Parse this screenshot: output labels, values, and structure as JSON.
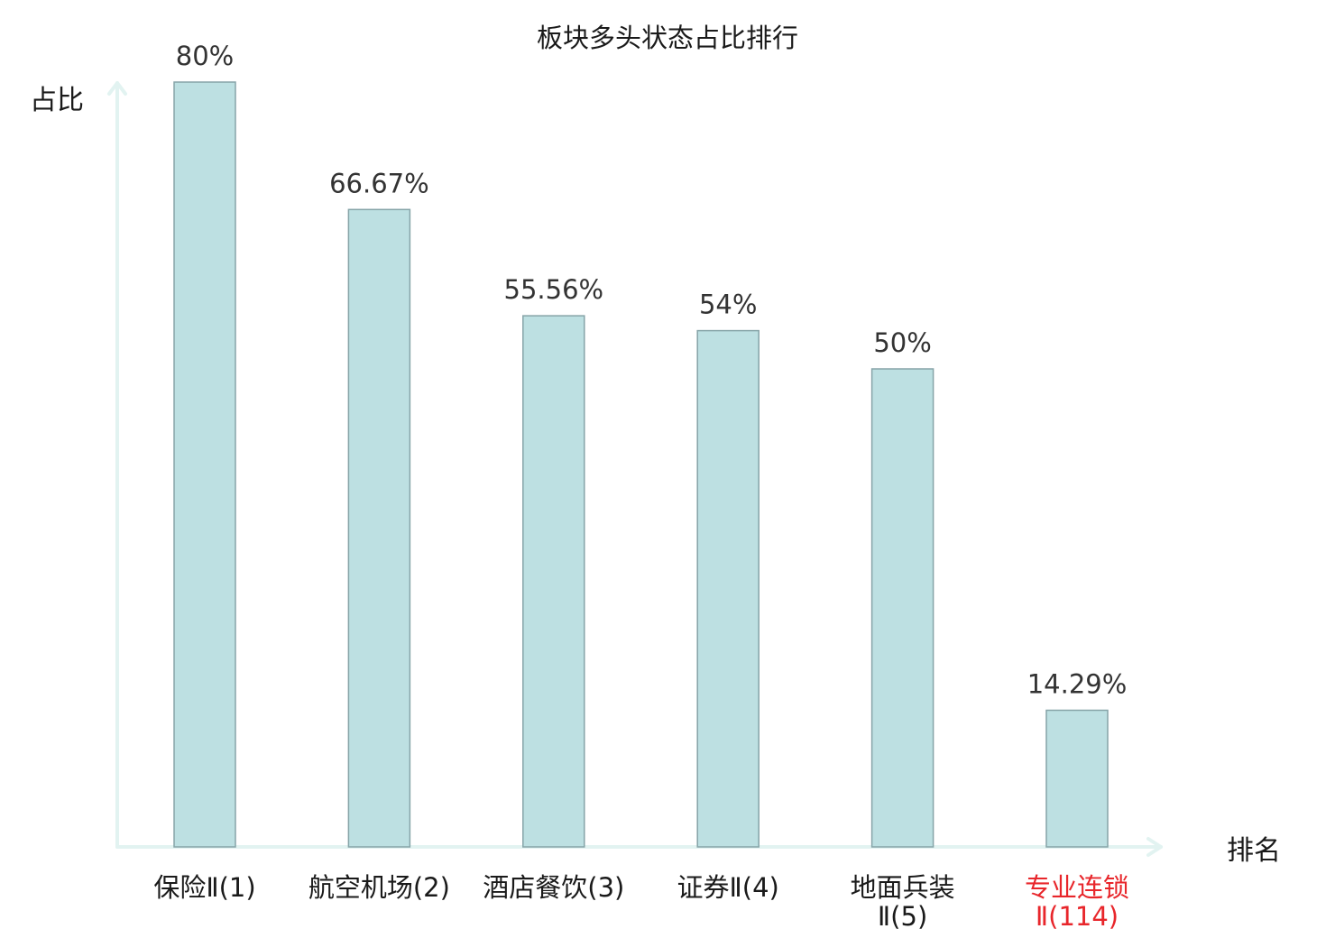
{
  "chart_data": {
    "type": "bar",
    "title": "板块多头状态占比排行",
    "ylabel": "占比",
    "xlabel": "排名",
    "categories": [
      [
        "保险Ⅱ(1)"
      ],
      [
        "航空机场(2)"
      ],
      [
        "酒店餐饮(3)"
      ],
      [
        "证券Ⅱ(4)"
      ],
      [
        "地面兵装",
        "Ⅱ(5)"
      ],
      [
        "专业连锁",
        "Ⅱ(114)"
      ]
    ],
    "values": [
      80,
      66.67,
      55.56,
      54,
      50,
      14.29
    ],
    "value_labels": [
      "80%",
      "66.67%",
      "55.56%",
      "54%",
      "50%",
      "14.29%"
    ],
    "highlight_index": 5,
    "ylim": [
      0,
      80
    ],
    "grid": false,
    "legend": "none",
    "colors": {
      "bar_fill": "#bde0e2",
      "bar_stroke": "#86a4a8",
      "axis": "#e2f3f1",
      "label_normal": "#1a1a1a",
      "label_highlight": "#e8262b",
      "value_text": "#333333"
    }
  }
}
